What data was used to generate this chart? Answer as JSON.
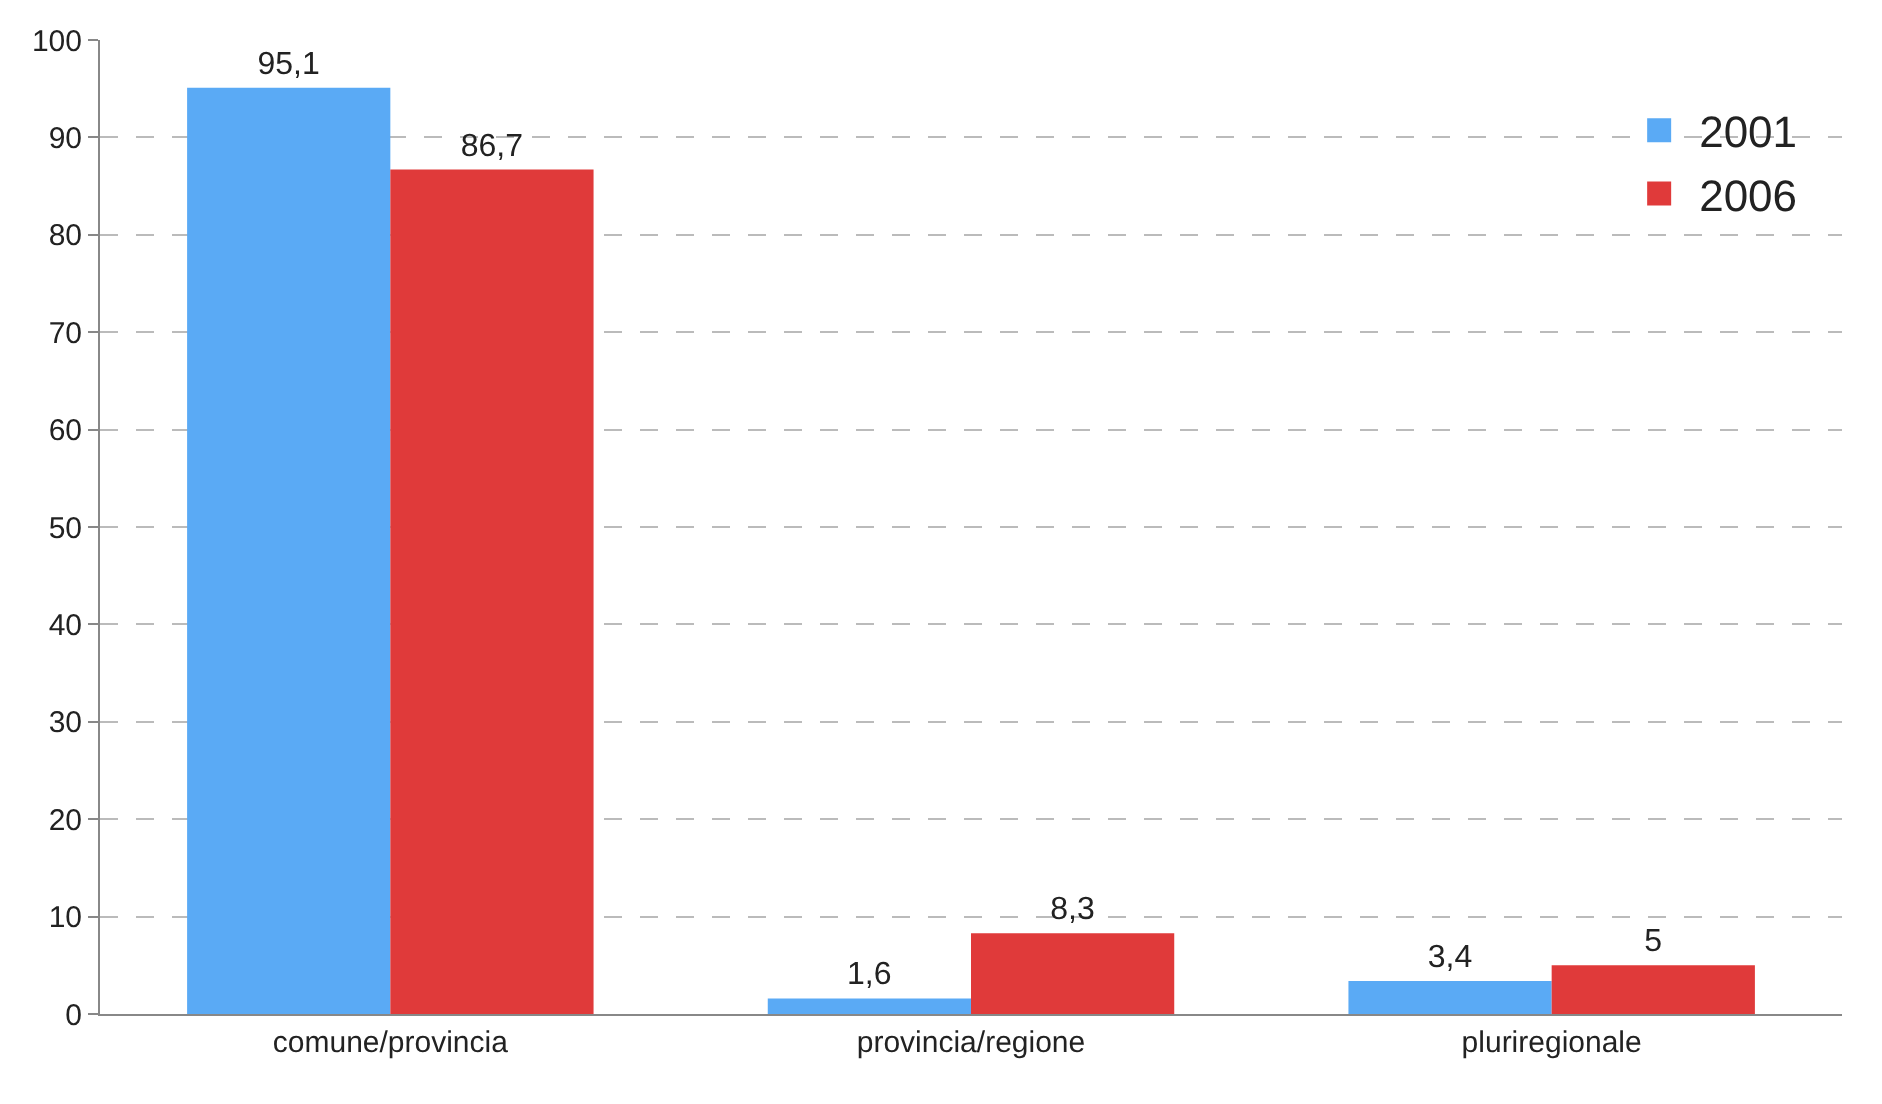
{
  "chart_data": {
    "type": "bar",
    "categories": [
      "comune/provincia",
      "provincia/regione",
      "pluriregionale"
    ],
    "series": [
      {
        "name": "2001",
        "color": "#5aaaf5",
        "values": [
          95.1,
          1.6,
          3.4
        ],
        "value_labels": [
          "95,1",
          "1,6",
          "3,4"
        ]
      },
      {
        "name": "2006",
        "color": "#e03a3a",
        "values": [
          86.7,
          8.3,
          5
        ],
        "value_labels": [
          "86,7",
          "8,3",
          "5"
        ]
      }
    ],
    "ylim": [
      0,
      100
    ],
    "yticks": [
      0,
      10,
      20,
      30,
      40,
      50,
      60,
      70,
      80,
      90,
      100
    ],
    "grid": "y",
    "legend": "top right"
  }
}
